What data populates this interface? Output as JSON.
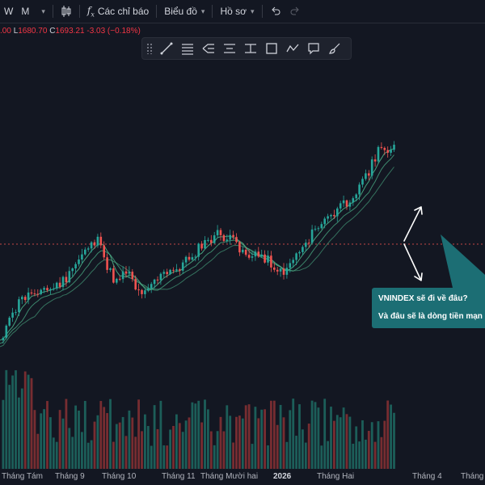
{
  "toolbar": {
    "interval_w": "W",
    "interval_m": "M",
    "indicators_label": "Các chỉ báo",
    "chart_label": "Biểu đồ",
    "profile_label": "Hồ sơ"
  },
  "ohlc": {
    "o_value": ".00",
    "l_label": "L",
    "l_value": "1680.70",
    "c_label": "C",
    "c_value": "1693.21",
    "change": "-3.03 (−0.18%)"
  },
  "annotation": {
    "line1": "VNINDEX sẽ đi về đâu?",
    "line2": "Và đâu sẽ là dòng tiền mạn"
  },
  "x_axis": [
    "Tháng Tám",
    "Tháng 9",
    "Tháng 10",
    "Tháng 11",
    "Tháng Mười hai",
    "2026",
    "Tháng Hai",
    "Tháng 4",
    "Tháng N"
  ],
  "colors": {
    "up": "#26a69a",
    "down": "#ef5350",
    "background": "#131722",
    "callout": "#1c6e74",
    "ma_lines": "#4caf87"
  },
  "chart_data": {
    "type": "candlestick",
    "symbol": "VNINDEX",
    "x_axis_labels": [
      "Tháng Tám",
      "Tháng 9",
      "Tháng 10",
      "Tháng 11",
      "Tháng Mười hai",
      "2026",
      "Tháng Hai",
      "Tháng 4",
      "Tháng N"
    ],
    "last_close": 1693.21,
    "last_low": 1680.7,
    "change": -3.03,
    "change_pct": -0.18,
    "moving_averages": 3,
    "volume_panel": true,
    "price_anchors_relative": [
      [
        0,
        0.08
      ],
      [
        10,
        0.2
      ],
      [
        25,
        0.42
      ],
      [
        45,
        0.52
      ],
      [
        60,
        0.5
      ],
      [
        85,
        0.62
      ],
      [
        105,
        0.88
      ],
      [
        120,
        0.95
      ],
      [
        128,
        0.8
      ],
      [
        140,
        0.6
      ],
      [
        160,
        0.7
      ],
      [
        170,
        0.48
      ],
      [
        195,
        0.62
      ],
      [
        215,
        0.67
      ],
      [
        250,
        0.9
      ],
      [
        270,
        1.0
      ],
      [
        290,
        0.93
      ],
      [
        310,
        0.8
      ],
      [
        325,
        0.82
      ],
      [
        348,
        0.65
      ],
      [
        370,
        0.86
      ],
      [
        395,
        1.08
      ],
      [
        420,
        1.22
      ],
      [
        440,
        1.38
      ],
      [
        455,
        1.55
      ],
      [
        470,
        1.75
      ],
      [
        490,
        1.78
      ],
      [
        505,
        1.55
      ],
      [
        525,
        1.45
      ],
      [
        545,
        1.55
      ],
      [
        565,
        1.62
      ],
      [
        585,
        1.52
      ],
      [
        600,
        1.38
      ],
      [
        620,
        1.18
      ],
      [
        635,
        1.26
      ],
      [
        648,
        1.2
      ]
    ]
  }
}
